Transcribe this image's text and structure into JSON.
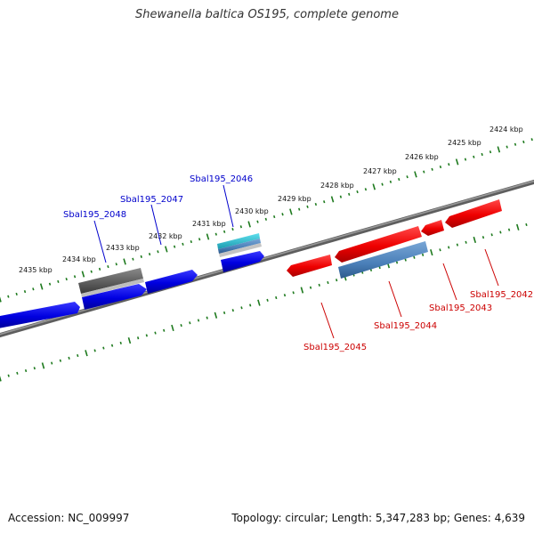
{
  "title": "Shewanella baltica OS195, complete genome",
  "accession_text": "Accession: NC_009997",
  "summary_text": "Topology: circular; Length: 5,347,283 bp; Genes: 4,639",
  "colors": {
    "backbone": "#7a7a7a",
    "tick": "#1e7a1e",
    "forward_gene": "#0000e0",
    "reverse_gene": "#ee0000",
    "forward_label": "#0000cc",
    "reverse_label": "#cc0000",
    "rna_gray": "#666666",
    "rna_teal": "#22b3c4",
    "rna_steel": "#4a7fb8"
  },
  "scale": {
    "unit": "kbp",
    "labels": [
      "2424 kbp",
      "2425 kbp",
      "2426 kbp",
      "2427 kbp",
      "2428 kbp",
      "2429 kbp",
      "2430 kbp",
      "2431 kbp",
      "2432 kbp",
      "2433 kbp",
      "2434 kbp",
      "2435 kbp"
    ]
  },
  "genes": [
    {
      "name": "",
      "strand": "forward",
      "kind": "cds"
    },
    {
      "name": "Sbal195_2048",
      "strand": "forward",
      "kind": "cds"
    },
    {
      "name": "",
      "strand": "forward",
      "kind": "rna"
    },
    {
      "name": "Sbal195_2047",
      "strand": "forward",
      "kind": "cds"
    },
    {
      "name": "Sbal195_2046",
      "strand": "forward",
      "kind": "cds"
    },
    {
      "name": "",
      "strand": "forward",
      "kind": "rna-stack"
    },
    {
      "name": "Sbal195_2045",
      "strand": "reverse",
      "kind": "cds"
    },
    {
      "name": "",
      "strand": "reverse",
      "kind": "cds"
    },
    {
      "name": "Sbal195_2044",
      "strand": "reverse",
      "kind": "rna"
    },
    {
      "name": "Sbal195_2043",
      "strand": "reverse",
      "kind": "cds"
    },
    {
      "name": "Sbal195_2042",
      "strand": "reverse",
      "kind": "cds"
    }
  ]
}
